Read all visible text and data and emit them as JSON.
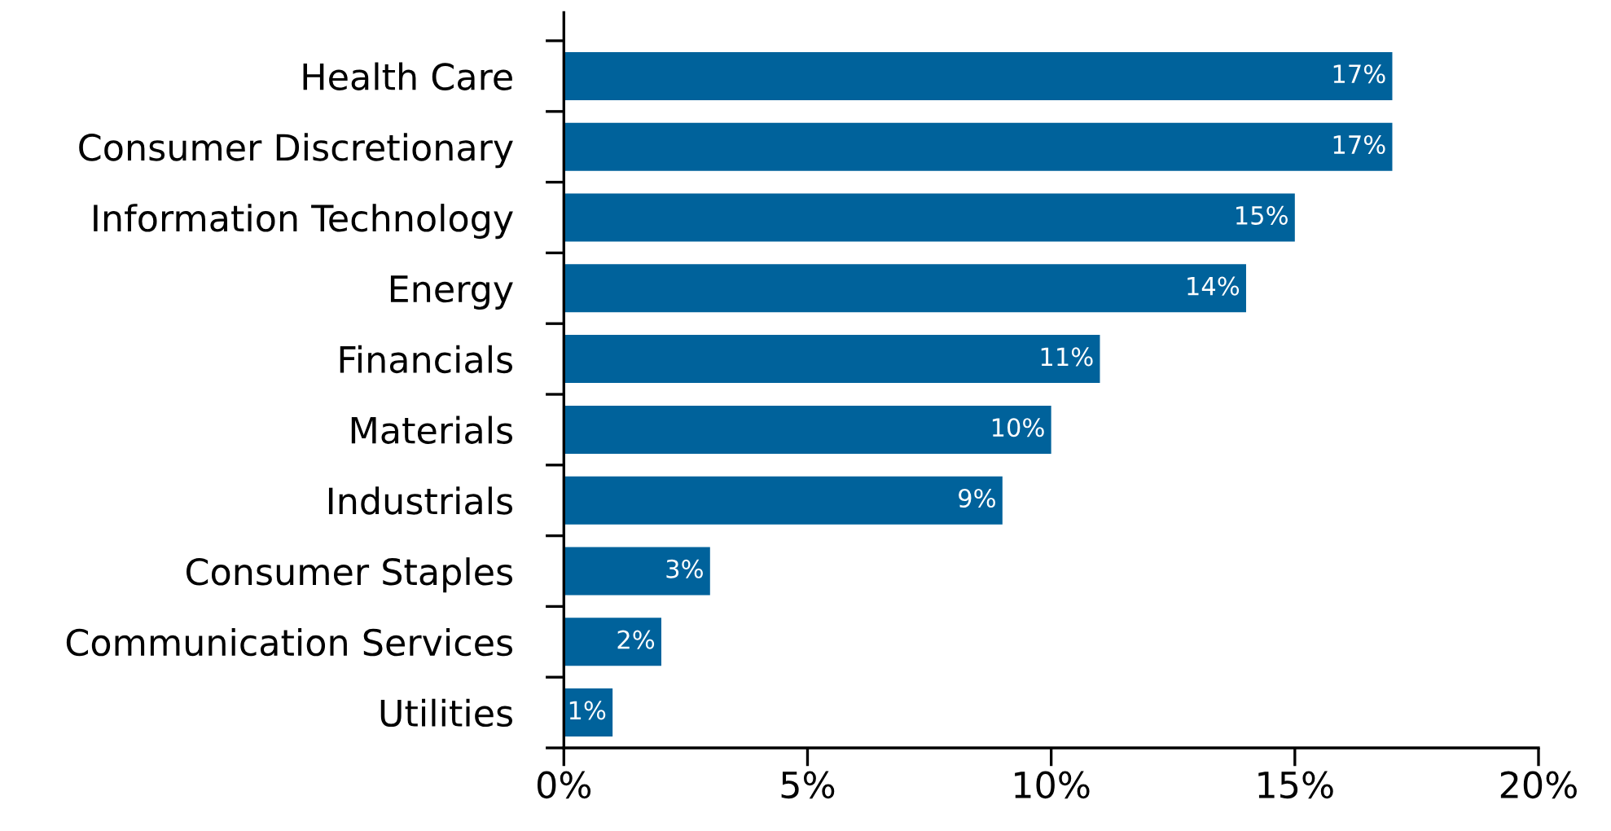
{
  "chart_data": {
    "type": "bar",
    "orientation": "horizontal",
    "categories": [
      "Health Care",
      "Consumer Discretionary",
      "Information Technology",
      "Energy",
      "Financials",
      "Materials",
      "Industrials",
      "Consumer Staples",
      "Communication Services",
      "Utilities"
    ],
    "values": [
      17,
      17,
      15,
      14,
      11,
      10,
      9,
      3,
      2,
      1
    ],
    "value_labels": [
      "17%",
      "17%",
      "15%",
      "14%",
      "11%",
      "10%",
      "9%",
      "3%",
      "2%",
      "1%"
    ],
    "color": "#00629b",
    "xlim": [
      0,
      20
    ],
    "xticks": [
      {
        "value": 0,
        "label": "0%"
      },
      {
        "value": 5,
        "label": "5%"
      },
      {
        "value": 10,
        "label": "10%"
      },
      {
        "value": 15,
        "label": "15%"
      },
      {
        "value": 20,
        "label": "20%"
      }
    ],
    "grid": false
  }
}
